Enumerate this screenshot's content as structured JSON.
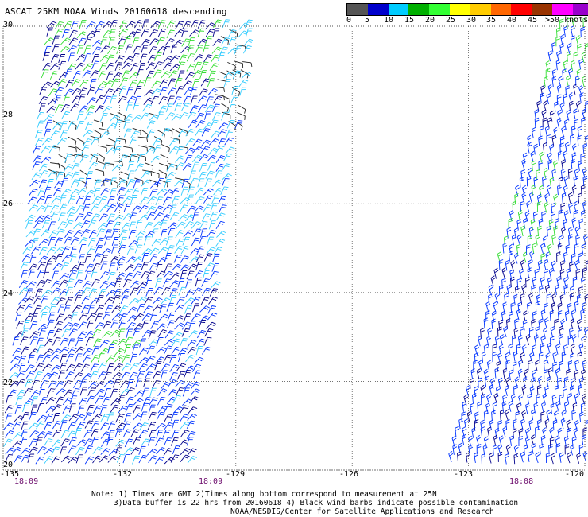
{
  "title": "ASCAT 25KM NOAA Winds 20160618 descending",
  "legend": {
    "colors": [
      "#555555",
      "#0000cc",
      "#00ccff",
      "#00b000",
      "#33ff33",
      "#ffff00",
      "#ffcc00",
      "#ff6600",
      "#ff0000",
      "#993300",
      "#ff00ff",
      "#9900cc"
    ],
    "labels": [
      "0",
      "5",
      "10",
      "15",
      "20",
      "25",
      "30",
      "35",
      "40",
      "45",
      ">50 knots"
    ]
  },
  "map": {
    "lat_labels": [
      "30",
      "28",
      "26",
      "24",
      "22",
      "20"
    ],
    "lon_labels": [
      "-135",
      "-132",
      "-129",
      "-126",
      "-123",
      "-120"
    ],
    "lat_range": [
      20,
      30
    ],
    "lon_range": [
      -135,
      -120
    ],
    "grid": true,
    "swath_times": [
      "18:09",
      "18:09",
      "18:08"
    ],
    "barb_colors": {
      "weak": "#222222",
      "light_blue": "#33ccff",
      "blue": "#0033ff",
      "navy": "#00008b",
      "green": "#33dd33"
    }
  },
  "notes": {
    "line1": "Note: 1) Times are GMT 2)Times along bottom correspond to measurement at 25N",
    "line2": "3)Data buffer is 22 hrs from 20160618 4) Black wind barbs indicate possible contamination",
    "line3": "NOAA/NESDIS/Center for Satellite Applications and Research"
  }
}
